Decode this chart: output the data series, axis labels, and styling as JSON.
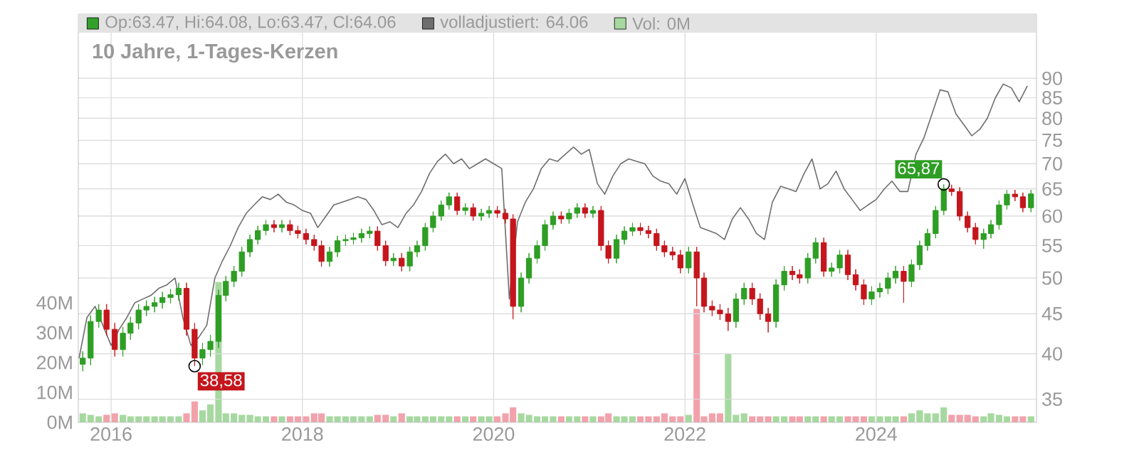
{
  "chart_data": {
    "type": "candlestick",
    "title": "10 Jahre, 1-Tages-Kerzen",
    "x": [
      "2015-09-15",
      "2015-10-15",
      "2015-11-15",
      "2015-12-15",
      "2016-01-15",
      "2016-02-15",
      "2016-03-15",
      "2016-04-15",
      "2016-05-15",
      "2016-06-15",
      "2016-07-15",
      "2016-08-15",
      "2016-09-15",
      "2016-10-15",
      "2016-11-15",
      "2016-12-15",
      "2017-01-15",
      "2017-02-15",
      "2017-03-15",
      "2017-04-15",
      "2017-05-15",
      "2017-06-15",
      "2017-07-15",
      "2017-08-15",
      "2017-09-15",
      "2017-10-15",
      "2017-11-15",
      "2017-12-15",
      "2018-01-15",
      "2018-02-15",
      "2018-03-15",
      "2018-04-15",
      "2018-05-15",
      "2018-06-15",
      "2018-07-15",
      "2018-08-15",
      "2018-09-15",
      "2018-10-15",
      "2018-11-15",
      "2018-12-15",
      "2019-01-15",
      "2019-02-15",
      "2019-03-15",
      "2019-04-15",
      "2019-05-15",
      "2019-06-15",
      "2019-07-15",
      "2019-08-15",
      "2019-09-15",
      "2019-10-15",
      "2019-11-15",
      "2019-12-15",
      "2020-01-15",
      "2020-02-15",
      "2020-03-15",
      "2020-04-15",
      "2020-05-15",
      "2020-06-15",
      "2020-07-15",
      "2020-08-15",
      "2020-09-15",
      "2020-10-15",
      "2020-11-15",
      "2020-12-15",
      "2021-01-15",
      "2021-02-15",
      "2021-03-15",
      "2021-04-15",
      "2021-05-15",
      "2021-06-15",
      "2021-07-15",
      "2021-08-15",
      "2021-09-15",
      "2021-10-15",
      "2021-11-15",
      "2021-12-15",
      "2022-01-15",
      "2022-02-15",
      "2022-03-15",
      "2022-04-15",
      "2022-05-15",
      "2022-06-15",
      "2022-07-15",
      "2022-08-15",
      "2022-09-15",
      "2022-10-15",
      "2022-11-15",
      "2022-12-15",
      "2023-01-15",
      "2023-02-15",
      "2023-03-15",
      "2023-04-15",
      "2023-05-15",
      "2023-06-15",
      "2023-07-15",
      "2023-08-15",
      "2023-09-15",
      "2023-10-15",
      "2023-11-15",
      "2023-12-15",
      "2024-01-15",
      "2024-02-15",
      "2024-03-15",
      "2024-04-15",
      "2024-05-15",
      "2024-06-15",
      "2024-07-15",
      "2024-08-15",
      "2024-09-15",
      "2024-10-15",
      "2024-11-15",
      "2024-12-15",
      "2025-01-15",
      "2025-02-15",
      "2025-03-15",
      "2025-04-15",
      "2025-05-15",
      "2025-06-15",
      "2025-07-15",
      "2025-08-15"
    ],
    "xlim": [
      "2015-08-29",
      "2025-09-05"
    ],
    "xticks": [
      "2016",
      "2018",
      "2020",
      "2022",
      "2024"
    ],
    "ylim": [
      32.7,
      108.7
    ],
    "yticks": [
      35,
      40,
      45,
      50,
      55,
      60,
      65,
      70,
      75,
      80,
      85,
      90
    ],
    "log": "y",
    "y2lim": [
      0,
      136.7
    ],
    "y2ticks": [
      {
        "value": 0,
        "label": "0M"
      },
      {
        "value": 10,
        "label": "10M"
      },
      {
        "value": 20,
        "label": "20M"
      },
      {
        "value": 30,
        "label": "30M"
      },
      {
        "value": 40,
        "label": "40M"
      }
    ],
    "grid": true,
    "legend": "top",
    "annotations": [
      {
        "text": "38,58",
        "x": "2016-11-15",
        "y": 38.58
      },
      {
        "text": "65,87",
        "x": "2024-09-15",
        "y": 65.87
      }
    ],
    "series": [
      {
        "name": "Op:63.47, Hi:64.08, Lo:63.47, Cl:64.06",
        "color": "#33a02c",
        "colors": [
          "#2e9e24",
          "#2e9e24",
          "#2e9e24",
          "#c4161c",
          "#c4161c",
          "#2e9e24",
          "#2e9e24",
          "#2e9e24",
          "#2e9e24",
          "#2e9e24",
          "#2e9e24",
          "#2e9e24",
          "#2e9e24",
          "#c4161c",
          "#c4161c",
          "#2e9e24",
          "#2e9e24",
          "#2e9e24",
          "#2e9e24",
          "#2e9e24",
          "#2e9e24",
          "#2e9e24",
          "#2e9e24",
          "#2e9e24",
          "#c4161c",
          "#2e9e24",
          "#c4161c",
          "#c4161c",
          "#c4161c",
          "#c4161c",
          "#c4161c",
          "#2e9e24",
          "#2e9e24",
          "#2e9e24",
          "#2e9e24",
          "#2e9e24",
          "#2e9e24",
          "#c4161c",
          "#c4161c",
          "#2e9e24",
          "#c4161c",
          "#2e9e24",
          "#2e9e24",
          "#2e9e24",
          "#2e9e24",
          "#2e9e24",
          "#2e9e24",
          "#c4161c",
          "#2e9e24",
          "#c4161c",
          "#2e9e24",
          "#2e9e24",
          "#c4161c",
          "#c4161c",
          "#c4161c",
          "#2e9e24",
          "#2e9e24",
          "#2e9e24",
          "#2e9e24",
          "#2e9e24",
          "#c4161c",
          "#2e9e24",
          "#2e9e24",
          "#c4161c",
          "#2e9e24",
          "#c4161c",
          "#c4161c",
          "#2e9e24",
          "#2e9e24",
          "#2e9e24",
          "#c4161c",
          "#c4161c",
          "#c4161c",
          "#c4161c",
          "#c4161c",
          "#c4161c",
          "#2e9e24",
          "#c4161c",
          "#c4161c",
          "#c4161c",
          "#c4161c",
          "#c4161c",
          "#2e9e24",
          "#2e9e24",
          "#c4161c",
          "#c4161c",
          "#c4161c",
          "#2e9e24",
          "#2e9e24",
          "#c4161c",
          "#c4161c",
          "#2e9e24",
          "#2e9e24",
          "#c4161c",
          "#2e9e24",
          "#2e9e24",
          "#c4161c",
          "#c4161c",
          "#c4161c",
          "#2e9e24",
          "#2e9e24",
          "#2e9e24",
          "#2e9e24",
          "#c4161c",
          "#2e9e24",
          "#2e9e24",
          "#2e9e24",
          "#2e9e24",
          "#2e9e24",
          "#c4161c",
          "#c4161c",
          "#c4161c",
          "#c4161c",
          "#2e9e24",
          "#2e9e24",
          "#2e9e24",
          "#2e9e24",
          "#c4161c",
          "#c4161c",
          "#2e9e24"
        ],
        "ohlc": [
          [
            38.8,
            40.3,
            38.0,
            39.5
          ],
          [
            39.5,
            44.8,
            38.7,
            44
          ],
          [
            44,
            46.3,
            43.2,
            45.5
          ],
          [
            45.5,
            46.3,
            42.2,
            43
          ],
          [
            43,
            43.8,
            39.7,
            40.5
          ],
          [
            40.5,
            43.3,
            39.7,
            42.5
          ],
          [
            42.5,
            44.6,
            41.7,
            43.8
          ],
          [
            43.8,
            46.3,
            43,
            45.5
          ],
          [
            45.5,
            46.8,
            44.7,
            46
          ],
          [
            46,
            47.3,
            45.2,
            46.5
          ],
          [
            46.5,
            48,
            45.7,
            47.2
          ],
          [
            47.2,
            48.4,
            46.4,
            47.6
          ],
          [
            47.6,
            49.3,
            46.8,
            48.5
          ],
          [
            48.5,
            49.3,
            42.2,
            43
          ],
          [
            43,
            43.8,
            38.58,
            39.5
          ],
          [
            39.5,
            41.3,
            38.7,
            40.5
          ],
          [
            40.5,
            42.3,
            39.7,
            41.5
          ],
          [
            41.5,
            48.3,
            40.7,
            47.5
          ],
          [
            47.5,
            50.3,
            46.7,
            49.5
          ],
          [
            49.5,
            51.8,
            48.7,
            51
          ],
          [
            51,
            54.8,
            50.2,
            54
          ],
          [
            54,
            56.8,
            53.2,
            56
          ],
          [
            56,
            58.3,
            55.2,
            57.5
          ],
          [
            57.5,
            59.3,
            56.7,
            58.5
          ],
          [
            58.5,
            59.3,
            57.2,
            58
          ],
          [
            58,
            59.3,
            57.2,
            58.5
          ],
          [
            58.5,
            59.3,
            56.7,
            57.5
          ],
          [
            57.5,
            58.3,
            56.2,
            57
          ],
          [
            57,
            57.8,
            55.2,
            56
          ],
          [
            56,
            56.8,
            54.2,
            55
          ],
          [
            55,
            55.8,
            51.7,
            52.5
          ],
          [
            52.5,
            54.8,
            51.7,
            54
          ],
          [
            54,
            56.6,
            53.2,
            55.8
          ],
          [
            55.8,
            56.8,
            55,
            56
          ],
          [
            56,
            57.1,
            55.2,
            56.3
          ],
          [
            56.3,
            57.8,
            55.5,
            57
          ],
          [
            57,
            58.2,
            56.2,
            57.4
          ],
          [
            57.4,
            58.2,
            54.2,
            55
          ],
          [
            55,
            55.8,
            51.8,
            52.6
          ],
          [
            52.6,
            53.8,
            51.8,
            53
          ],
          [
            53,
            53.8,
            51,
            51.8
          ],
          [
            51.8,
            54.8,
            51,
            54
          ],
          [
            54,
            55.8,
            53.2,
            55
          ],
          [
            55,
            58.8,
            54.2,
            58
          ],
          [
            58,
            60.8,
            57.2,
            60
          ],
          [
            60,
            62.8,
            59.2,
            62
          ],
          [
            62,
            64.3,
            61.2,
            63.5
          ],
          [
            63.5,
            64.3,
            60.2,
            61
          ],
          [
            61,
            62.3,
            60.2,
            61.5
          ],
          [
            61.5,
            62.3,
            59.2,
            60
          ],
          [
            60,
            61.3,
            59.2,
            60.5
          ],
          [
            60.5,
            61.8,
            59.7,
            61
          ],
          [
            61,
            61.8,
            59.7,
            60.5
          ],
          [
            60.5,
            61.3,
            58.7,
            59.5
          ],
          [
            59.5,
            60.3,
            44.3,
            46
          ],
          [
            46,
            50.8,
            45.2,
            50
          ],
          [
            50,
            53.8,
            49.2,
            53
          ],
          [
            53,
            55.8,
            52.2,
            55
          ],
          [
            55,
            59.3,
            54.2,
            58.5
          ],
          [
            58.5,
            60.8,
            57.7,
            60
          ],
          [
            60,
            60.8,
            58.7,
            59.5
          ],
          [
            59.5,
            61.3,
            58.7,
            60.5
          ],
          [
            60.5,
            62.3,
            59.7,
            61.5
          ],
          [
            61.5,
            62.3,
            59.7,
            60.5
          ],
          [
            60.5,
            61.8,
            59.7,
            61
          ],
          [
            61,
            61.8,
            54.2,
            55
          ],
          [
            55,
            55.8,
            52.2,
            53
          ],
          [
            53,
            56.8,
            52.2,
            56
          ],
          [
            56,
            58.2,
            55.2,
            57.4
          ],
          [
            57.4,
            58.8,
            56.6,
            58
          ],
          [
            58,
            58.8,
            56.7,
            57.5
          ],
          [
            57.5,
            58.3,
            56.2,
            57
          ],
          [
            57,
            57.8,
            54.2,
            55
          ],
          [
            55,
            55.8,
            53.2,
            54
          ],
          [
            54,
            54.8,
            52.7,
            53.5
          ],
          [
            53.5,
            54.3,
            50.7,
            51.5
          ],
          [
            51.5,
            54.8,
            50.7,
            54
          ],
          [
            54,
            54.8,
            46,
            50
          ],
          [
            50,
            50.8,
            45.2,
            46
          ],
          [
            46,
            46.8,
            44.7,
            45.5
          ],
          [
            45.5,
            46.3,
            44.2,
            45
          ],
          [
            45,
            45.8,
            42.8,
            44
          ],
          [
            44,
            47.8,
            43.2,
            47
          ],
          [
            47,
            49.3,
            46.2,
            48.5
          ],
          [
            48.5,
            49.3,
            46.2,
            47
          ],
          [
            47,
            47.8,
            44.2,
            45
          ],
          [
            45,
            45.8,
            42.6,
            44
          ],
          [
            44,
            49.8,
            43.2,
            49
          ],
          [
            49,
            51.8,
            48.2,
            51
          ],
          [
            51,
            51.8,
            49.7,
            50.5
          ],
          [
            50.5,
            51.3,
            49.2,
            50
          ],
          [
            50,
            53.8,
            49.2,
            53
          ],
          [
            53,
            56.3,
            52.2,
            55.5
          ],
          [
            55.5,
            56.3,
            50.2,
            51
          ],
          [
            51,
            52.3,
            50.2,
            51.5
          ],
          [
            51.5,
            54.3,
            50.7,
            53.5
          ],
          [
            53.5,
            54.3,
            49.7,
            50.5
          ],
          [
            50.5,
            51.3,
            48.2,
            49
          ],
          [
            49,
            49.8,
            46.2,
            47
          ],
          [
            47,
            48.8,
            46.2,
            48
          ],
          [
            48,
            49.3,
            47.2,
            48.5
          ],
          [
            48.5,
            50.8,
            47.7,
            50
          ],
          [
            50,
            51.8,
            49.2,
            51
          ],
          [
            51,
            51.8,
            46.5,
            49.5
          ],
          [
            49.5,
            52.8,
            48.7,
            52
          ],
          [
            52,
            55.8,
            51.2,
            55
          ],
          [
            55,
            57.8,
            54.2,
            57
          ],
          [
            57,
            61.8,
            56.2,
            61
          ],
          [
            61,
            65.87,
            60.2,
            65
          ],
          [
            65,
            65.8,
            63.7,
            64.5
          ],
          [
            64.5,
            65.3,
            59.2,
            60
          ],
          [
            60,
            60.8,
            57.2,
            58
          ],
          [
            58,
            58.8,
            55.2,
            56
          ],
          [
            56,
            57.8,
            54.5,
            57
          ],
          [
            57,
            59.3,
            56.2,
            58.5
          ],
          [
            58.5,
            62.8,
            57.7,
            62
          ],
          [
            62,
            64.8,
            61.2,
            64
          ],
          [
            64,
            64.8,
            62.7,
            63.5
          ],
          [
            63.5,
            64.3,
            60.7,
            61.5
          ],
          [
            61.5,
            64.8,
            60.7,
            64.06
          ]
        ]
      },
      {
        "type": "line",
        "name": "volladjustiert: 64.06",
        "color": "#6e6e6e",
        "x": [
          "2015-09-01",
          "2015-10-01",
          "2015-11-01",
          "2015-12-01",
          "2016-01-01",
          "2016-02-01",
          "2016-03-01",
          "2016-04-01",
          "2016-05-01",
          "2016-06-01",
          "2016-07-01",
          "2016-08-01",
          "2016-09-01",
          "2016-10-01",
          "2016-11-01",
          "2016-12-01",
          "2017-01-01",
          "2017-02-01",
          "2017-03-01",
          "2017-04-01",
          "2017-05-01",
          "2017-06-01",
          "2017-07-01",
          "2017-08-01",
          "2017-09-01",
          "2017-10-01",
          "2017-11-01",
          "2017-12-01",
          "2018-01-01",
          "2018-02-01",
          "2018-03-01",
          "2018-04-01",
          "2018-05-01",
          "2018-06-01",
          "2018-07-01",
          "2018-08-01",
          "2018-09-01",
          "2018-10-01",
          "2018-11-01",
          "2018-12-01",
          "2019-01-01",
          "2019-02-01",
          "2019-03-01",
          "2019-04-01",
          "2019-05-01",
          "2019-06-01",
          "2019-07-01",
          "2019-08-01",
          "2019-09-01",
          "2019-10-01",
          "2019-11-01",
          "2019-12-01",
          "2020-01-01",
          "2020-02-01",
          "2020-03-01",
          "2020-04-01",
          "2020-05-01",
          "2020-06-01",
          "2020-07-01",
          "2020-08-01",
          "2020-09-01",
          "2020-10-01",
          "2020-11-01",
          "2020-12-01",
          "2021-01-01",
          "2021-02-01",
          "2021-03-01",
          "2021-04-01",
          "2021-05-01",
          "2021-06-01",
          "2021-07-01",
          "2021-08-01",
          "2021-09-01",
          "2021-10-01",
          "2021-11-01",
          "2021-12-01",
          "2022-01-01",
          "2022-02-01",
          "2022-03-01",
          "2022-04-01",
          "2022-05-01",
          "2022-06-01",
          "2022-07-01",
          "2022-08-01",
          "2022-09-01",
          "2022-10-01",
          "2022-11-01",
          "2022-12-01",
          "2023-01-01",
          "2023-02-01",
          "2023-03-01",
          "2023-04-01",
          "2023-05-01",
          "2023-06-01",
          "2023-07-01",
          "2023-08-01",
          "2023-09-01",
          "2023-10-01",
          "2023-11-01",
          "2023-12-01",
          "2024-01-01",
          "2024-02-01",
          "2024-03-01",
          "2024-04-01",
          "2024-05-01",
          "2024-06-01",
          "2024-07-01",
          "2024-08-01",
          "2024-09-01",
          "2024-10-01",
          "2024-11-01",
          "2024-12-01",
          "2025-01-01",
          "2025-02-01",
          "2025-03-01",
          "2025-04-01",
          "2025-05-01",
          "2025-06-01",
          "2025-07-01",
          "2025-08-01"
        ],
        "values": [
          39.5,
          44.5,
          46,
          43.5,
          41,
          43,
          44.5,
          46.5,
          47,
          47.5,
          48.5,
          49,
          50,
          44.5,
          41,
          42,
          43.5,
          50,
          52.5,
          55,
          58,
          60.5,
          62,
          63.5,
          63,
          64,
          62.5,
          62,
          61,
          60.5,
          58,
          60,
          62,
          62.5,
          63,
          63.5,
          63,
          61,
          58.5,
          59,
          58,
          60.5,
          62,
          64.5,
          68,
          70.5,
          72,
          70,
          71,
          69,
          70,
          71,
          70,
          69,
          47,
          59,
          62.5,
          65,
          69,
          71,
          70.5,
          72,
          73.5,
          72,
          73,
          66,
          64,
          67.5,
          70,
          71,
          70.5,
          70,
          67.5,
          66.5,
          66,
          64,
          67,
          62,
          58,
          57.5,
          57,
          56,
          59.5,
          61.5,
          59.5,
          57,
          56,
          62.5,
          65.5,
          65,
          64.5,
          68,
          71,
          65,
          66,
          68.5,
          65,
          63,
          61,
          62,
          63,
          65,
          66.5,
          64.5,
          64.5,
          72,
          75.5,
          81,
          87,
          86.5,
          81,
          78.5,
          76,
          77.5,
          80,
          85,
          88.5,
          87.5,
          84,
          88
        ]
      },
      {
        "type": "bar",
        "name": "Vol: 0M",
        "color": "#a6d9a0",
        "axis": "y2",
        "colors": [
          "#a6d9a0",
          "#a6d9a0",
          "#a6d9a0",
          "#f2a2ab",
          "#f2a2ab",
          "#a6d9a0",
          "#a6d9a0",
          "#a6d9a0",
          "#a6d9a0",
          "#a6d9a0",
          "#a6d9a0",
          "#a6d9a0",
          "#a6d9a0",
          "#f2a2ab",
          "#f2a2ab",
          "#a6d9a0",
          "#a6d9a0",
          "#a6d9a0",
          "#a6d9a0",
          "#a6d9a0",
          "#a6d9a0",
          "#a6d9a0",
          "#a6d9a0",
          "#a6d9a0",
          "#f2a2ab",
          "#a6d9a0",
          "#f2a2ab",
          "#f2a2ab",
          "#f2a2ab",
          "#f2a2ab",
          "#f2a2ab",
          "#a6d9a0",
          "#a6d9a0",
          "#a6d9a0",
          "#a6d9a0",
          "#a6d9a0",
          "#a6d9a0",
          "#f2a2ab",
          "#f2a2ab",
          "#a6d9a0",
          "#f2a2ab",
          "#a6d9a0",
          "#a6d9a0",
          "#a6d9a0",
          "#a6d9a0",
          "#a6d9a0",
          "#a6d9a0",
          "#f2a2ab",
          "#a6d9a0",
          "#f2a2ab",
          "#a6d9a0",
          "#a6d9a0",
          "#f2a2ab",
          "#f2a2ab",
          "#f2a2ab",
          "#a6d9a0",
          "#a6d9a0",
          "#a6d9a0",
          "#a6d9a0",
          "#a6d9a0",
          "#f2a2ab",
          "#a6d9a0",
          "#a6d9a0",
          "#f2a2ab",
          "#a6d9a0",
          "#f2a2ab",
          "#f2a2ab",
          "#a6d9a0",
          "#a6d9a0",
          "#a6d9a0",
          "#f2a2ab",
          "#f2a2ab",
          "#f2a2ab",
          "#f2a2ab",
          "#f2a2ab",
          "#f2a2ab",
          "#a6d9a0",
          "#f2a2ab",
          "#f2a2ab",
          "#f2a2ab",
          "#f2a2ab",
          "#a6d9a0",
          "#a6d9a0",
          "#a6d9a0",
          "#f2a2ab",
          "#f2a2ab",
          "#f2a2ab",
          "#a6d9a0",
          "#a6d9a0",
          "#f2a2ab",
          "#f2a2ab",
          "#a6d9a0",
          "#a6d9a0",
          "#f2a2ab",
          "#a6d9a0",
          "#a6d9a0",
          "#f2a2ab",
          "#f2a2ab",
          "#f2a2ab",
          "#a6d9a0",
          "#a6d9a0",
          "#a6d9a0",
          "#a6d9a0",
          "#f2a2ab",
          "#a6d9a0",
          "#a6d9a0",
          "#a6d9a0",
          "#a6d9a0",
          "#a6d9a0",
          "#f2a2ab",
          "#f2a2ab",
          "#f2a2ab",
          "#f2a2ab",
          "#a6d9a0",
          "#a6d9a0",
          "#a6d9a0",
          "#a6d9a0",
          "#f2a2ab",
          "#f2a2ab",
          "#a6d9a0"
        ],
        "values": [
          3,
          2.5,
          2,
          2.5,
          3,
          2.5,
          2,
          2,
          2,
          2,
          2,
          2,
          2,
          3,
          7,
          4,
          6,
          47,
          3,
          3,
          2.5,
          2.5,
          2,
          2,
          2,
          2,
          2,
          2,
          2,
          3,
          3,
          2,
          2,
          2,
          2,
          2,
          2,
          2.5,
          2.5,
          2,
          3,
          2,
          2,
          2,
          2,
          2,
          2,
          2,
          2,
          2,
          2,
          2,
          2,
          3,
          5,
          3,
          2.5,
          2,
          2,
          2,
          2,
          2,
          2,
          2,
          2,
          2,
          3,
          2,
          2,
          2,
          2,
          2,
          2,
          3,
          2,
          2,
          2.5,
          38,
          2,
          3,
          3,
          23,
          2.5,
          3,
          2,
          2,
          2,
          2,
          2,
          2,
          2,
          2,
          2,
          2,
          2,
          2,
          2,
          2,
          2,
          2,
          2,
          2,
          2,
          2,
          3,
          4,
          3,
          3,
          5,
          2.5,
          2.5,
          2.5,
          2,
          2,
          3,
          2.5,
          2,
          2,
          2,
          2
        ]
      }
    ]
  }
}
